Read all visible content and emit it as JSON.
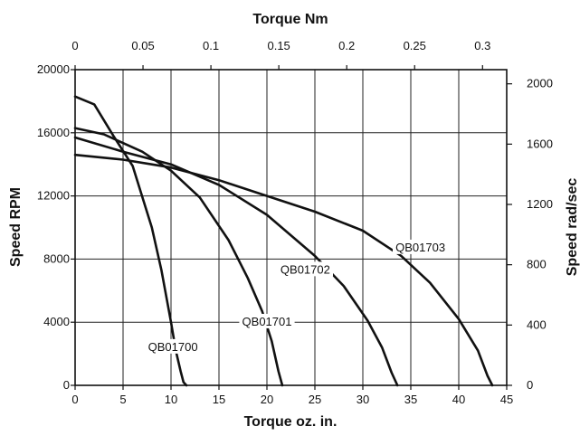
{
  "chart_data": {
    "type": "line",
    "title": "",
    "xlabel": "Torque oz. in.",
    "ylabel": "Speed RPM",
    "x2label": "Torque Nm",
    "y2label": "Speed rad/sec",
    "xlim": [
      0,
      45
    ],
    "ylim": [
      0,
      20000
    ],
    "x2lim": [
      0,
      0.3178
    ],
    "y2lim": [
      0,
      2094
    ],
    "xticks": [
      "0",
      "5",
      "10",
      "15",
      "20",
      "25",
      "30",
      "35",
      "40",
      "45"
    ],
    "yticks": [
      "0",
      "4000",
      "8000",
      "12000",
      "16000",
      "20000"
    ],
    "x2ticks": [
      "0",
      "0.05",
      "0.1",
      "0.15",
      "0.2",
      "0.25",
      "0.3"
    ],
    "y2ticks": [
      "0",
      "400",
      "800",
      "1200",
      "1600",
      "2000"
    ],
    "grid": true,
    "series": [
      {
        "name": "QB01700",
        "x": [
          0,
          2,
          4,
          6,
          8,
          9,
          10,
          10.5,
          11,
          11.3,
          11.6
        ],
        "y": [
          18300,
          17800,
          15800,
          13900,
          10000,
          7300,
          4000,
          2200,
          900,
          200,
          0
        ]
      },
      {
        "name": "QB01701",
        "x": [
          0,
          3,
          7,
          10,
          13,
          16,
          18,
          19.5,
          20.5,
          21.2,
          21.6
        ],
        "y": [
          16300,
          15900,
          14800,
          13600,
          11900,
          9200,
          6800,
          4700,
          2800,
          900,
          0
        ]
      },
      {
        "name": "QB01702",
        "x": [
          0,
          5,
          10,
          15,
          20,
          25,
          28,
          30.5,
          32,
          33,
          33.6
        ],
        "y": [
          15700,
          14800,
          14000,
          12700,
          10800,
          8200,
          6300,
          4100,
          2400,
          800,
          0
        ]
      },
      {
        "name": "QB01703",
        "x": [
          0,
          5,
          10,
          15,
          20,
          25,
          30,
          34,
          37,
          40,
          42,
          43,
          43.5
        ],
        "y": [
          14600,
          14300,
          13800,
          13000,
          12000,
          11000,
          9800,
          8200,
          6500,
          4200,
          2200,
          600,
          0
        ]
      }
    ]
  }
}
